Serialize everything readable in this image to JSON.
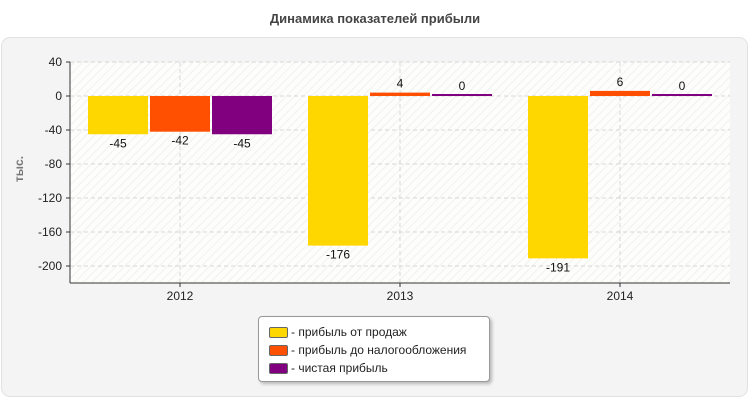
{
  "chart_data": {
    "type": "bar",
    "title": "Динамика показателей прибыли",
    "xlabel": "",
    "ylabel": "тыс.",
    "categories": [
      "2012",
      "2013",
      "2014"
    ],
    "series": [
      {
        "name": "прибыль от продаж",
        "color": "#ffd700",
        "values": [
          -45,
          -176,
          -191
        ]
      },
      {
        "name": "прибыль до налогообложения",
        "color": "#ff4f00",
        "values": [
          -42,
          4,
          6
        ]
      },
      {
        "name": "чистая прибыль",
        "color": "#800080",
        "values": [
          -45,
          0,
          0
        ]
      }
    ],
    "yticks": [
      40,
      0,
      -40,
      -80,
      -120,
      -160,
      -200
    ],
    "ylim": [
      -220,
      40
    ],
    "grid": true,
    "legend_position": "bottom-center"
  },
  "legend": {
    "items": [
      {
        "label": "- прибыль от продаж",
        "color": "#ffd700"
      },
      {
        "label": "- прибыль до налогообложения",
        "color": "#ff4f00"
      },
      {
        "label": "- чистая прибыль",
        "color": "#800080"
      }
    ]
  }
}
